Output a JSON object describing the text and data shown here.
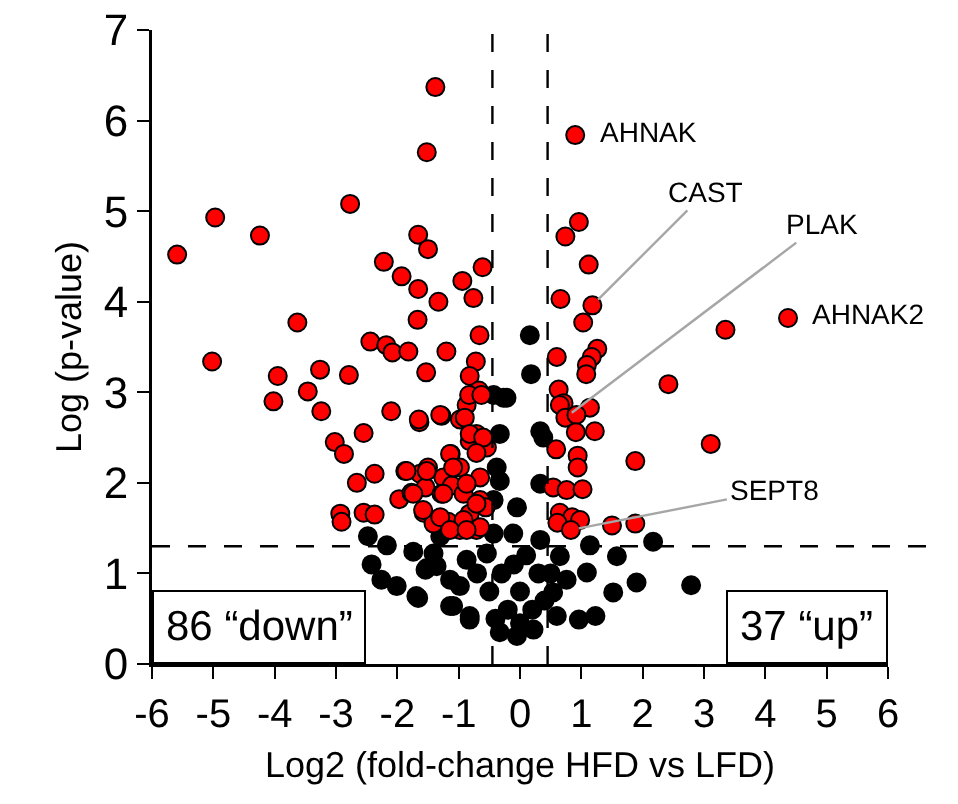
{
  "chart_data": {
    "type": "scatter",
    "xlabel": "Log2 (fold-change HFD vs LFD)",
    "ylabel": "Log (p-value)",
    "xlim": [
      -6,
      6
    ],
    "xticks": [
      -6,
      -5,
      -4,
      -3,
      -2,
      -1,
      0,
      1,
      2,
      3,
      4,
      5,
      6
    ],
    "ylim": [
      0,
      7
    ],
    "yticks": [
      0,
      1,
      2,
      3,
      4,
      5,
      6,
      7
    ],
    "marker": "circle",
    "ref_lines": [
      {
        "axis": "y",
        "value": 1.3,
        "line_style": "dashed",
        "color": "#000000"
      },
      {
        "axis": "x",
        "value": -0.45,
        "line_style": "dashed",
        "color": "#000000"
      },
      {
        "axis": "x",
        "value": 0.45,
        "line_style": "dashed",
        "color": "#000000"
      }
    ],
    "annotations": [
      "86 “down”",
      "37 “up”",
      {
        "text": "AHNAK",
        "x": 0.9,
        "y": 5.84
      },
      {
        "text": "CAST",
        "x": 1.18,
        "y": 3.96
      },
      {
        "text": "PLAK",
        "x": 0.74,
        "y": 2.72
      },
      {
        "text": "AHNAK2",
        "x": 4.37,
        "y": 3.82
      },
      {
        "text": "SEPT8",
        "x": 0.83,
        "y": 1.48
      }
    ],
    "series": [
      {
        "color": "#000000",
        "x": [
          0.16,
          0.18,
          -0.22,
          -0.43,
          -0.27,
          0.33,
          0.38,
          -0.33,
          -0.38,
          0.33,
          -0.33,
          -0.05,
          -0.43,
          -2.48,
          -2.42,
          -2.26,
          -2.17,
          -2.01,
          -1.66,
          -1.74,
          -1.54,
          -1.3,
          -1.14,
          -1.09,
          -0.82,
          -1.41,
          -1.52,
          -1.69,
          -1.14,
          -0.82,
          -0.33,
          -0.05,
          0.22,
          0.6,
          0.96,
          1.23,
          1.52,
          1.9,
          2.79,
          2.17,
          1.58,
          1.14,
          1.09,
          0.76,
          0.54,
          -0.98,
          -1.36,
          -0.87,
          -0.54,
          0.33,
          0.65,
          -0.11,
          -0.43,
          -0.3,
          0,
          0.3,
          -0.2,
          0.2,
          0,
          -0.5,
          0.5,
          -0.7,
          0.1,
          -0.1,
          0.4,
          -0.4
        ],
        "values": [
          3.63,
          3.2,
          2.94,
          2.97,
          2.94,
          2.57,
          2.5,
          2.54,
          2.17,
          1.99,
          2.02,
          1.73,
          1.81,
          1.41,
          1.1,
          0.93,
          1.31,
          0.86,
          0.73,
          1.24,
          1.04,
          1.41,
          0.93,
          0.64,
          0.49,
          1.22,
          1.06,
          0.75,
          0.64,
          0.53,
          0.35,
          0.31,
          0.38,
          0.53,
          0.49,
          0.53,
          0.79,
          0.9,
          0.87,
          1.35,
          1.19,
          1.31,
          1.01,
          0.93,
          0.79,
          0.86,
          1.08,
          1.15,
          1.22,
          1.37,
          1.19,
          1.44,
          1.44,
          1.0,
          0.8,
          1.0,
          0.6,
          0.6,
          0.45,
          0.8,
          1.0,
          1.0,
          1.2,
          1.1,
          0.7,
          0.5
        ]
      },
      {
        "color": "#ff0000",
        "x": [
          -1.38,
          -1.52,
          -2.77,
          -4.97,
          -4.24,
          -5.59,
          -1.66,
          -1.5,
          -2.22,
          -1.93,
          -1.66,
          -0.94,
          -0.61,
          -0.76,
          -1.33,
          -1.67,
          -3.63,
          -0.66,
          -2.44,
          -2.18,
          -2.08,
          -1.82,
          -1.2,
          -0.72,
          -5.02,
          -1.53,
          -3.26,
          -3.95,
          -2.79,
          -0.82,
          -3.46,
          -0.67,
          -4.02,
          -3.24,
          -2.1,
          -1.64,
          -1.28,
          -0.98,
          -3.02,
          -2.87,
          -2.55,
          -2.66,
          -2.37,
          -1.87,
          -1.63,
          -1.5,
          -1.25,
          -1.13,
          -0.98,
          -1.97,
          -1.77,
          -1.54,
          -1.28,
          -1.11,
          -0.92,
          -2.93,
          -2.91,
          -2.55,
          -2.37,
          -1.57,
          -1.41,
          -1.17,
          -0.98,
          -0.71,
          -0.82,
          -0.65,
          -0.82,
          -0.71,
          -0.87,
          -0.83,
          -0.63,
          -0.54,
          -0.56,
          -1.65,
          -1.3,
          -0.9,
          -0.82,
          -0.6,
          -0.71,
          -1.14,
          -1.09,
          -1.52,
          -1.85,
          -0.65,
          -0.87,
          -1.25,
          -1.74,
          -0.71,
          -1.58,
          -1.3,
          -0.92,
          -0.65,
          -1.14,
          -0.87,
          0.9,
          0.96,
          0.74,
          1.12,
          0.66,
          1.18,
          1.03,
          3.35,
          4.37,
          0.6,
          1.26,
          1.17,
          1.09,
          1.08,
          2.42,
          0.63,
          0.71,
          1.14,
          0.65,
          0.74,
          0.92,
          1.22,
          0.91,
          0.59,
          0.94,
          0.94,
          1.88,
          3.11,
          0.54,
          0.76,
          1.02,
          0.65,
          0.85,
          0.98,
          0.61,
          0.83,
          1.5,
          1.88
        ],
        "values": [
          6.37,
          5.65,
          5.08,
          4.93,
          4.73,
          4.52,
          4.74,
          4.58,
          4.44,
          4.28,
          4.14,
          4.23,
          4.38,
          4.04,
          4.0,
          3.8,
          3.77,
          3.63,
          3.56,
          3.52,
          3.44,
          3.45,
          3.45,
          3.34,
          3.34,
          3.22,
          3.25,
          3.18,
          3.19,
          3.18,
          3.01,
          3.02,
          2.9,
          2.79,
          2.79,
          2.67,
          2.74,
          2.7,
          2.45,
          2.32,
          2.55,
          2.0,
          2.1,
          2.13,
          2.1,
          2.17,
          2.06,
          2.32,
          2.17,
          1.82,
          1.89,
          1.95,
          1.88,
          1.97,
          1.88,
          1.66,
          1.57,
          1.67,
          1.65,
          1.67,
          1.55,
          1.57,
          1.48,
          1.48,
          1.66,
          1.81,
          2.46,
          2.54,
          2.86,
          2.97,
          2.97,
          2.39,
          1.73,
          2.7,
          2.75,
          2.72,
          2.54,
          2.5,
          2.33,
          2.32,
          2.17,
          2.13,
          2.13,
          2.06,
          1.99,
          1.88,
          1.88,
          1.77,
          1.7,
          1.62,
          1.59,
          1.51,
          1.48,
          1.48,
          5.84,
          4.88,
          4.72,
          4.41,
          4.03,
          3.96,
          3.77,
          3.69,
          3.82,
          3.39,
          3.48,
          3.39,
          3.3,
          3.2,
          3.09,
          3.03,
          2.88,
          2.83,
          2.86,
          2.72,
          2.75,
          2.57,
          2.56,
          2.37,
          2.3,
          2.17,
          2.24,
          2.43,
          1.95,
          1.92,
          1.93,
          1.67,
          1.62,
          1.59,
          1.56,
          1.48,
          1.53,
          1.55
        ]
      }
    ]
  }
}
